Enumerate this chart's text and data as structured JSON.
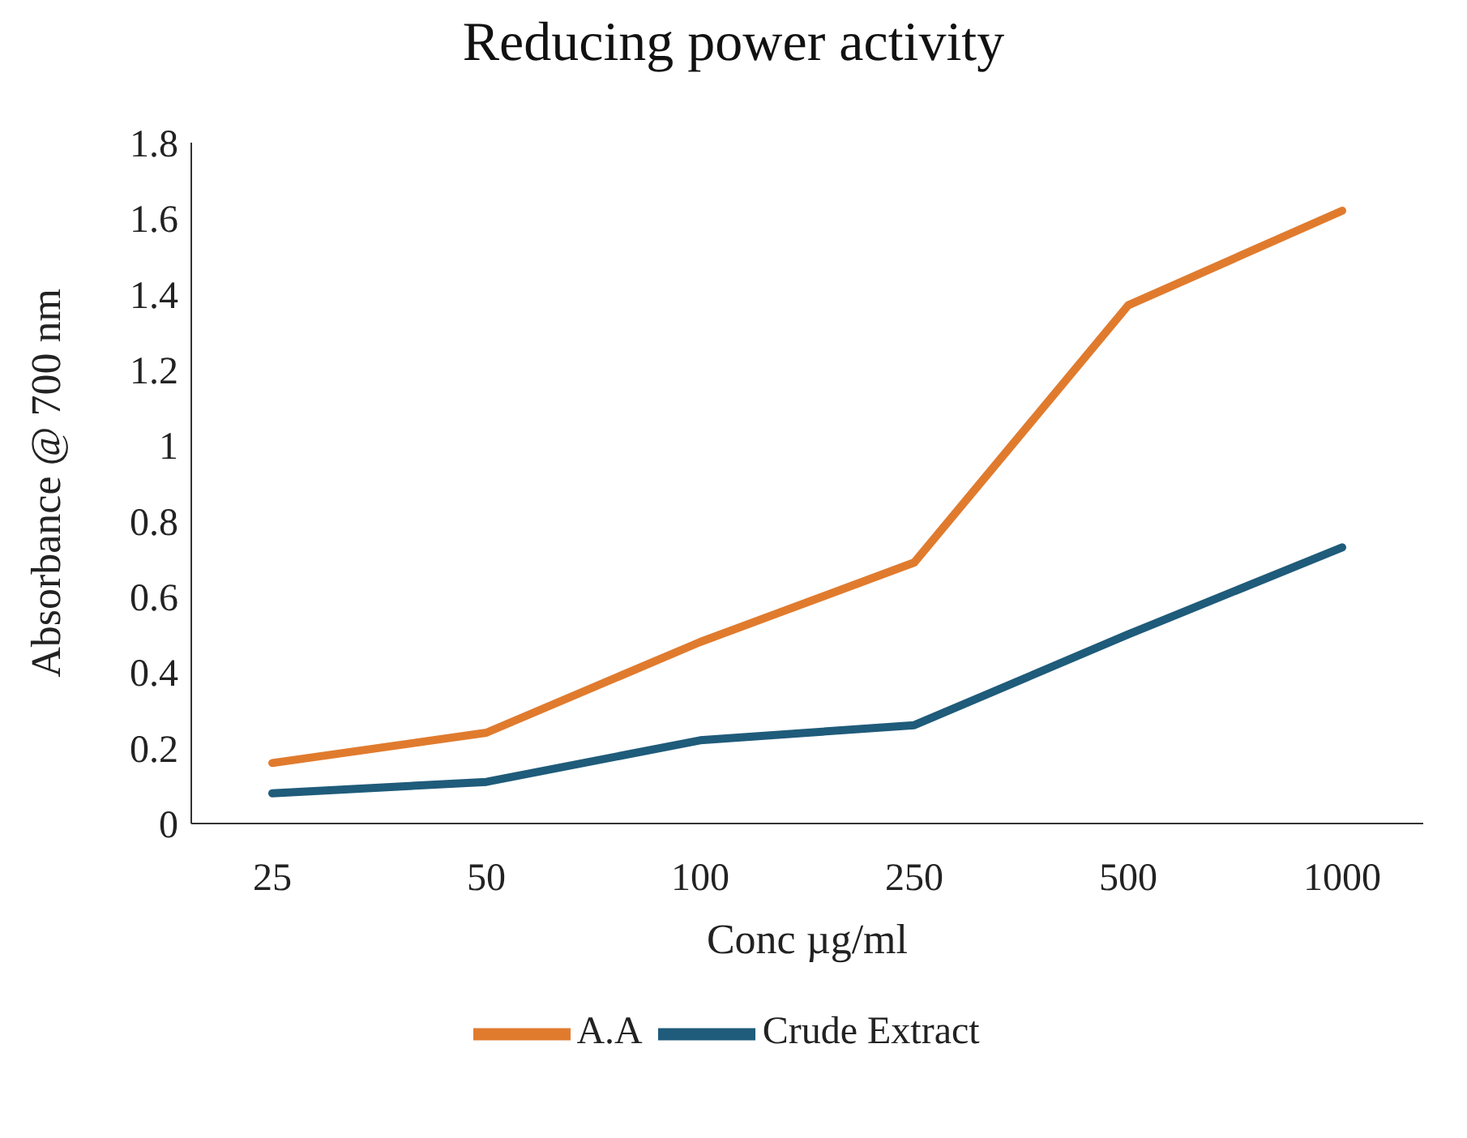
{
  "chart_data": {
    "type": "line",
    "title": "Reducing power activity",
    "xlabel": "Conc µg/ml",
    "ylabel": "Absorbance @ 700 nm",
    "categories": [
      "25",
      "50",
      "100",
      "250",
      "500",
      "1000"
    ],
    "series": [
      {
        "name": "Crude Extract",
        "color": "#1f5b7a",
        "values": [
          0.08,
          0.11,
          0.22,
          0.26,
          0.5,
          0.73
        ]
      },
      {
        "name": "A.A",
        "color": "#e07b2e",
        "values": [
          0.16,
          0.24,
          0.48,
          0.69,
          1.37,
          1.62
        ]
      }
    ],
    "ylim": [
      0,
      1.8
    ],
    "yticks": [
      0,
      0.2,
      0.4,
      0.6,
      0.8,
      1,
      1.2,
      1.4,
      1.6,
      1.8
    ],
    "grid": false,
    "legend": "bottom",
    "marker": "none",
    "line_style": "solid"
  }
}
